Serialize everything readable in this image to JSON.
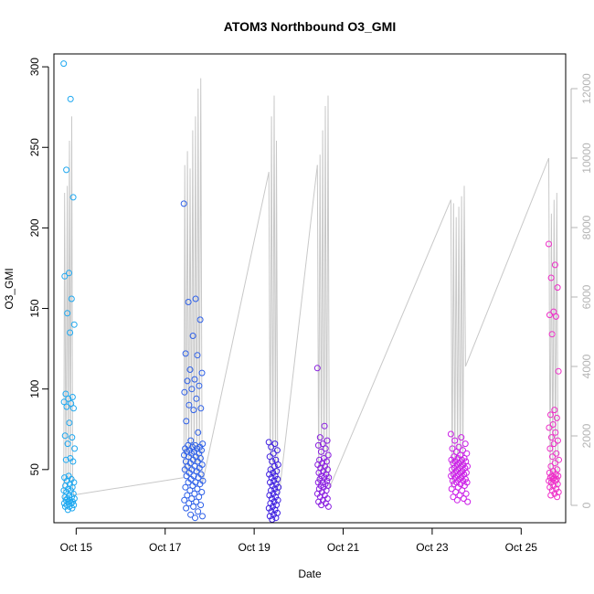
{
  "chart_data": {
    "type": "scatter",
    "title": "ATOM3 Northbound O3_GMI",
    "xlabel": "Date",
    "ylabel": "O3_GMI",
    "x_unit": "date (October, day of month)",
    "xlim": [
      14.5,
      26.0
    ],
    "ylim": [
      17,
      308
    ],
    "x_ticks": [
      {
        "value": 15,
        "label": "Oct 15"
      },
      {
        "value": 17,
        "label": "Oct 17"
      },
      {
        "value": 19,
        "label": "Oct 19"
      },
      {
        "value": 21,
        "label": "Oct 21"
      },
      {
        "value": 23,
        "label": "Oct 23"
      },
      {
        "value": 25,
        "label": "Oct 25"
      }
    ],
    "y_ticks": [
      50,
      100,
      150,
      200,
      250,
      300
    ],
    "y2_ticks": [
      0,
      2000,
      4000,
      6000,
      8000,
      10000,
      12000
    ],
    "y2lim": [
      -500,
      13000
    ],
    "y2_color": "#b4b4b4",
    "grid": false,
    "legend": "none",
    "secondary_series": {
      "name": "altitude",
      "color": "#c8c8c8",
      "style": "line",
      "bursts": [
        {
          "center": 14.85,
          "width": 0.16,
          "points": [
            [
              14.72,
              100
            ],
            [
              14.74,
              9000
            ],
            [
              14.77,
              600
            ],
            [
              14.8,
              9200
            ],
            [
              14.82,
              800
            ],
            [
              14.85,
              10500
            ],
            [
              14.87,
              700
            ],
            [
              14.9,
              11200
            ],
            [
              14.92,
              500
            ],
            [
              14.95,
              300
            ]
          ]
        },
        {
          "center": 17.6,
          "width": 0.4,
          "points": [
            [
              17.42,
              800
            ],
            [
              17.44,
              9800
            ],
            [
              17.47,
              900
            ],
            [
              17.5,
              10200
            ],
            [
              17.53,
              700
            ],
            [
              17.56,
              9700
            ],
            [
              17.59,
              1000
            ],
            [
              17.62,
              10800
            ],
            [
              17.65,
              1200
            ],
            [
              17.68,
              11200
            ],
            [
              17.71,
              900
            ],
            [
              17.74,
              12000
            ],
            [
              17.77,
              800
            ],
            [
              17.8,
              12300
            ],
            [
              17.83,
              600
            ]
          ]
        },
        {
          "center": 19.45,
          "width": 0.18,
          "points": [
            [
              19.33,
              9600
            ],
            [
              19.36,
              1000
            ],
            [
              19.39,
              11200
            ],
            [
              19.42,
              900
            ],
            [
              19.45,
              11800
            ],
            [
              19.48,
              700
            ],
            [
              19.5,
              10500
            ],
            [
              19.53,
              400
            ],
            [
              19.56,
              300
            ]
          ]
        },
        {
          "center": 20.55,
          "width": 0.34,
          "points": [
            [
              20.42,
              9800
            ],
            [
              20.45,
              600
            ],
            [
              20.48,
              10100
            ],
            [
              20.51,
              900
            ],
            [
              20.54,
              10800
            ],
            [
              20.57,
              700
            ],
            [
              20.6,
              11500
            ],
            [
              20.63,
              800
            ],
            [
              20.66,
              11800
            ],
            [
              20.69,
              500
            ]
          ]
        },
        {
          "center": 23.55,
          "width": 0.36,
          "points": [
            [
              23.42,
              8800
            ],
            [
              23.45,
              500
            ],
            [
              23.48,
              8700
            ],
            [
              23.51,
              900
            ],
            [
              23.54,
              8300
            ],
            [
              23.57,
              1000
            ],
            [
              23.6,
              8600
            ],
            [
              23.63,
              700
            ],
            [
              23.66,
              8900
            ],
            [
              23.69,
              800
            ],
            [
              23.72,
              9200
            ],
            [
              23.75,
              4000
            ]
          ]
        },
        {
          "center": 25.75,
          "width": 0.26,
          "points": [
            [
              25.62,
              10000
            ],
            [
              25.65,
              500
            ],
            [
              25.68,
              8400
            ],
            [
              25.71,
              700
            ],
            [
              25.74,
              8800
            ],
            [
              25.77,
              900
            ],
            [
              25.8,
              9000
            ],
            [
              25.83,
              500
            ]
          ]
        }
      ],
      "connectors": [
        [
          [
            14.95,
            300
          ],
          [
            17.42,
            800
          ]
        ],
        [
          [
            17.83,
            600
          ],
          [
            19.33,
            9600
          ]
        ],
        [
          [
            19.56,
            300
          ],
          [
            20.42,
            9800
          ]
        ],
        [
          [
            20.69,
            500
          ],
          [
            23.42,
            8800
          ]
        ],
        [
          [
            23.75,
            4000
          ],
          [
            25.62,
            10000
          ]
        ]
      ]
    },
    "series": [
      {
        "color": "#1ea8f0",
        "x_range": [
          14.72,
          14.97
        ],
        "values": [
          302,
          280,
          236,
          219,
          172,
          170,
          156,
          147,
          140,
          135,
          97,
          95,
          94,
          92,
          91,
          89,
          88,
          79,
          71,
          70,
          66,
          63,
          57,
          56,
          55,
          46,
          45,
          44,
          43,
          42,
          41,
          40,
          39,
          38,
          37,
          37,
          36,
          35,
          34,
          33,
          33,
          32,
          32,
          31,
          31,
          30,
          30,
          29,
          29,
          28,
          28,
          27,
          27,
          26,
          25
        ]
      },
      {
        "color": "#2e60e8",
        "x_range": [
          17.42,
          17.85
        ],
        "values": [
          215,
          156,
          154,
          143,
          133,
          122,
          121,
          112,
          110,
          106,
          105,
          102,
          100,
          98,
          94,
          90,
          88,
          87,
          80,
          73,
          68,
          66,
          65,
          65,
          64,
          64,
          63,
          63,
          62,
          62,
          61,
          61,
          60,
          60,
          59,
          58,
          58,
          57,
          56,
          55,
          55,
          54,
          53,
          52,
          52,
          51,
          50,
          50,
          49,
          48,
          47,
          46,
          46,
          45,
          44,
          43,
          42,
          42,
          41,
          40,
          39,
          38,
          37,
          36,
          35,
          34,
          33,
          32,
          31,
          30,
          29,
          28,
          27,
          26,
          24,
          22,
          21,
          20
        ]
      },
      {
        "color": "#3d1ee0",
        "x_range": [
          19.33,
          19.55
        ],
        "values": [
          67,
          66,
          64,
          62,
          60,
          58,
          56,
          55,
          53,
          52,
          50,
          49,
          48,
          47,
          46,
          45,
          44,
          43,
          42,
          41,
          40,
          39,
          38,
          37,
          36,
          35,
          34,
          33,
          32,
          31,
          30,
          29,
          28,
          27,
          26,
          25,
          24,
          23,
          22,
          21,
          20,
          19
        ]
      },
      {
        "color": "#8a1ee0",
        "x_range": [
          20.42,
          20.68
        ],
        "values": [
          113,
          77,
          70,
          68,
          66,
          65,
          63,
          61,
          59,
          57,
          56,
          55,
          54,
          53,
          52,
          51,
          50,
          49,
          48,
          47,
          46,
          45,
          45,
          44,
          43,
          42,
          42,
          41,
          40,
          40,
          39,
          38,
          37,
          36,
          35,
          34,
          33,
          32,
          31,
          30,
          29,
          28,
          27
        ]
      },
      {
        "color": "#cc1ee8",
        "x_range": [
          23.42,
          23.8
        ],
        "values": [
          72,
          70,
          68,
          66,
          64,
          63,
          62,
          61,
          60,
          59,
          58,
          57,
          57,
          56,
          56,
          55,
          55,
          54,
          54,
          53,
          53,
          52,
          52,
          51,
          51,
          50,
          50,
          49,
          49,
          48,
          48,
          47,
          47,
          46,
          46,
          45,
          45,
          44,
          44,
          43,
          43,
          42,
          42,
          41,
          41,
          40,
          39,
          38,
          37,
          36,
          35,
          34,
          33,
          32,
          31,
          30
        ]
      },
      {
        "color": "#ee2ec8",
        "x_range": [
          25.62,
          25.85
        ],
        "values": [
          190,
          177,
          169,
          163,
          148,
          146,
          145,
          134,
          111,
          87,
          84,
          82,
          78,
          76,
          73,
          70,
          68,
          66,
          63,
          60,
          58,
          56,
          54,
          52,
          50,
          49,
          48,
          47,
          46,
          46,
          45,
          45,
          44,
          44,
          43,
          43,
          42,
          41,
          40,
          39,
          38,
          37,
          36,
          35,
          34,
          33
        ]
      }
    ]
  }
}
